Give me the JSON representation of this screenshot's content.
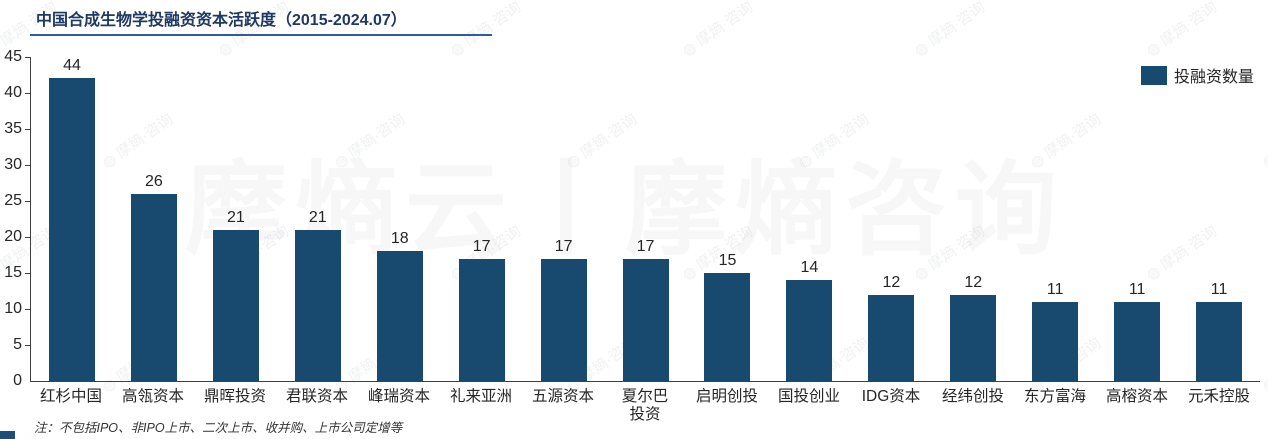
{
  "title": "中国合成生物学投融资资本活跃度（2015-2024.07）",
  "legend": {
    "label": "投融资数量",
    "swatch_color": "#174a6e"
  },
  "note": "注：不包括IPO、非IPO上市、二次上市、收并购、上市公司定增等",
  "watermark": {
    "small_text": "摩熵·咨询",
    "large_text": "摩熵云丨摩熵咨询"
  },
  "colors": {
    "bar": "#174a6e",
    "title": "#1f3864",
    "title_underline": "#2e5c9e",
    "axis": "#404040",
    "label_text": "#262626"
  },
  "chart_data": {
    "type": "bar",
    "title": "中国合成生物学投融资资本活跃度（2015-2024.07）",
    "categories": [
      "红杉中国",
      "高瓴资本",
      "鼎晖投资",
      "君联资本",
      "峰瑞资本",
      "礼来亚洲",
      "五源资本",
      "夏尔巴投资",
      "启明创投",
      "国投创业",
      "IDG资本",
      "经纬创投",
      "东方富海",
      "高榕资本",
      "元禾控股"
    ],
    "tick_labels": [
      "红杉中国",
      "高瓴资本",
      "鼎晖投资",
      "君联资本",
      "峰瑞资本",
      "礼来亚洲",
      "五源资本",
      "夏尔巴\n投资",
      "启明创投",
      "国投创业",
      "IDG资本",
      "经纬创投",
      "东方富海",
      "高榕资本",
      "元禾控股"
    ],
    "values": [
      44,
      26,
      21,
      21,
      18,
      17,
      17,
      17,
      15,
      14,
      12,
      12,
      11,
      11,
      11
    ],
    "xlabel": "",
    "ylabel": "",
    "ylim": [
      0,
      45
    ],
    "yticks": [
      0,
      5,
      10,
      15,
      20,
      25,
      30,
      35,
      40,
      45
    ],
    "legend": [
      "投融资数量"
    ],
    "legend_position": "top-right",
    "grid": false,
    "bar_color": "#174a6e",
    "value_labels_shown": true
  }
}
